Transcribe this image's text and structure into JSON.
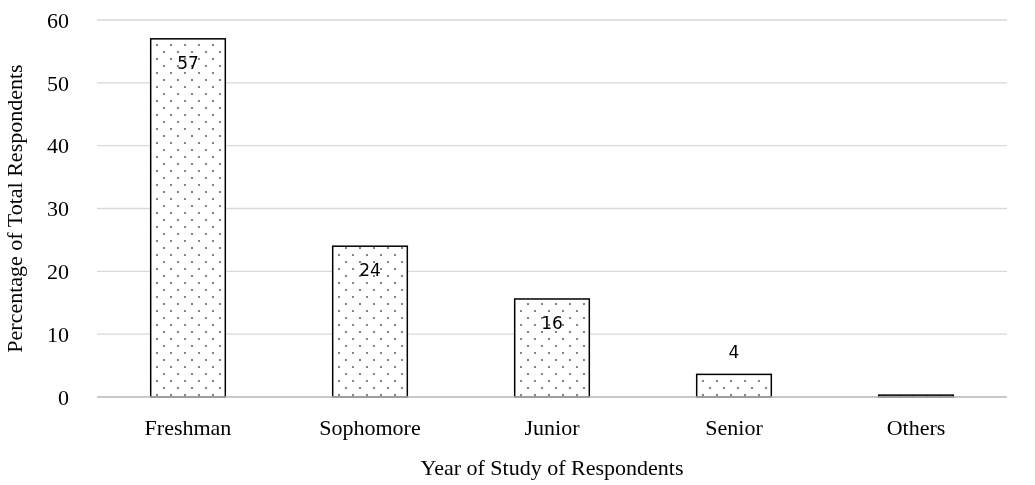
{
  "chart_data": {
    "type": "bar",
    "xlabel": "Year of Study of Respondents",
    "ylabel": "Percentage of Total Respondents",
    "categories": [
      "Freshman",
      "Sophomore",
      "Junior",
      "Senior",
      "Others"
    ],
    "values": [
      57,
      24,
      15.6,
      3.6,
      0.3
    ],
    "value_labels": [
      "57",
      "24",
      "16",
      "4",
      null
    ],
    "color": "#000000",
    "ylim": [
      0,
      60
    ],
    "yticks": [
      0,
      10,
      20,
      30,
      40,
      50,
      60
    ],
    "grid": "y"
  }
}
